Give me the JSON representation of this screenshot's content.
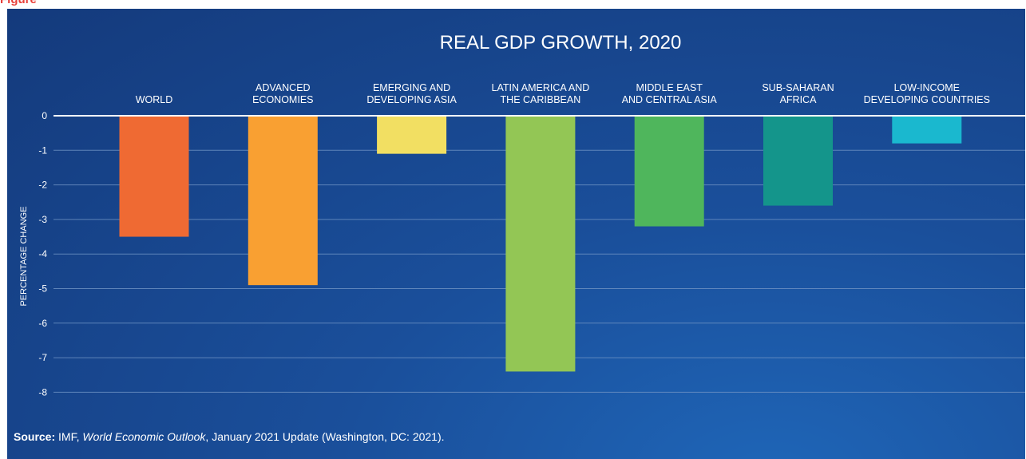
{
  "page": {
    "top_caption": "Figure"
  },
  "chart_data": {
    "type": "bar",
    "title": "REAL GDP GROWTH, 2020",
    "ylabel": "PERCENTAGE CHANGE",
    "xlabel": "",
    "ylim": [
      -8,
      0
    ],
    "yticks": [
      0,
      -1,
      -2,
      -3,
      -4,
      -5,
      -6,
      -7,
      -8
    ],
    "grid": true,
    "categories": [
      [
        "WORLD"
      ],
      [
        "ADVANCED",
        "ECONOMIES"
      ],
      [
        "EMERGING AND",
        "DEVELOPING ASIA"
      ],
      [
        "LATIN AMERICA AND",
        "THE CARIBBEAN"
      ],
      [
        "MIDDLE EAST",
        "AND CENTRAL ASIA"
      ],
      [
        "SUB-SAHARAN",
        "AFRICA"
      ],
      [
        "LOW-INCOME",
        "DEVELOPING COUNTRIES"
      ]
    ],
    "values": [
      -3.5,
      -4.9,
      -1.1,
      -7.4,
      -3.2,
      -2.6,
      -0.8
    ],
    "colors": [
      "#ef6a33",
      "#f9a032",
      "#f2df62",
      "#93c655",
      "#4fb65c",
      "#14958b",
      "#1ab8cf"
    ]
  },
  "source": {
    "label": "Source:",
    "text_before": " IMF, ",
    "italic": "World Economic Outlook",
    "text_after": ", January 2021 Update (Washington, DC: 2021)."
  }
}
